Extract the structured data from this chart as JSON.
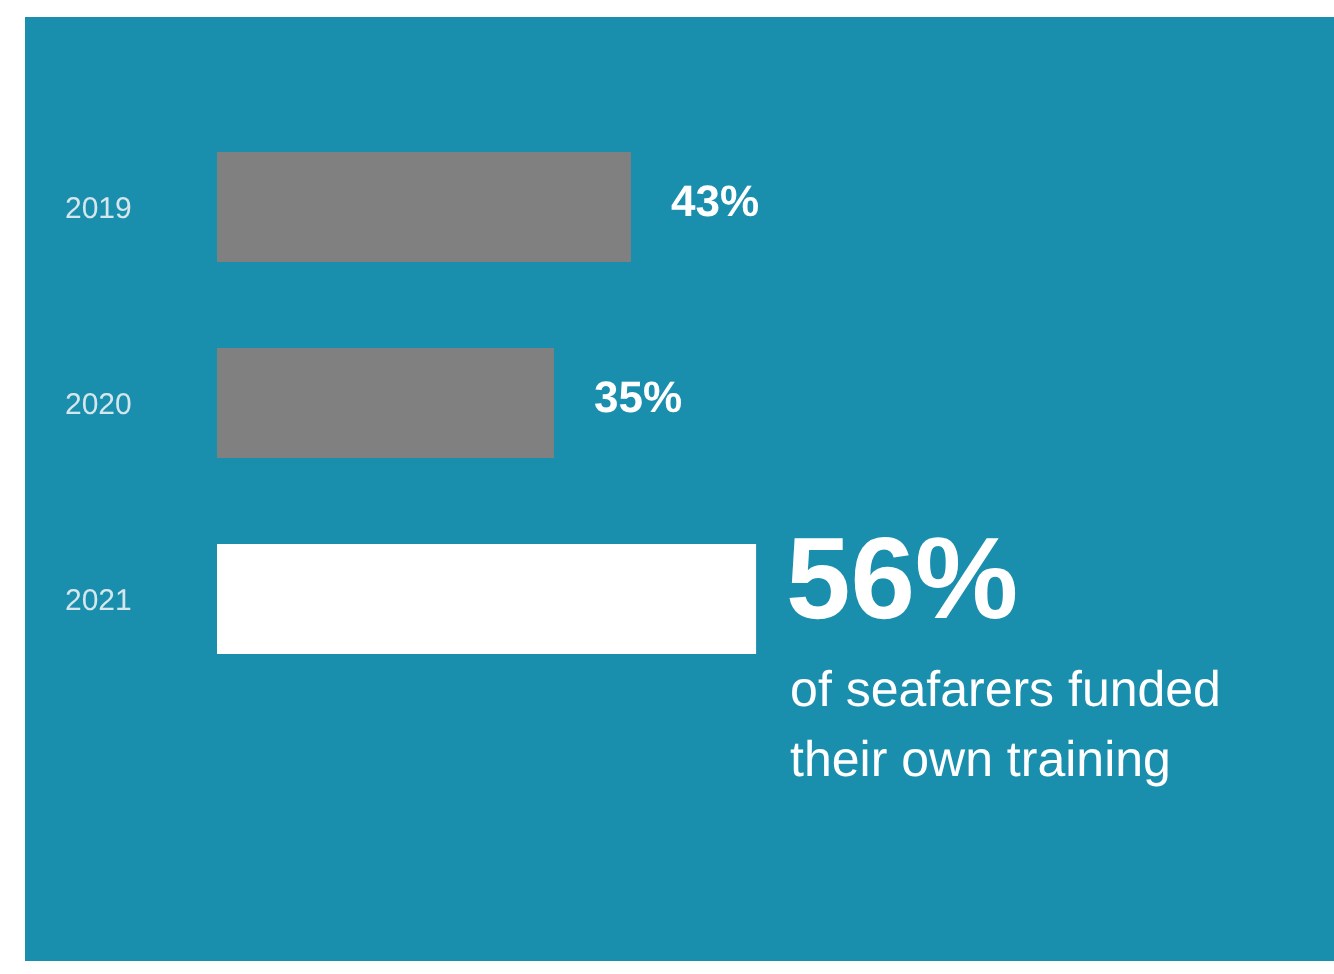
{
  "chart_data": {
    "type": "bar",
    "orientation": "horizontal",
    "categories": [
      "2019",
      "2020",
      "2021"
    ],
    "values": [
      43,
      35,
      56
    ],
    "colors": [
      "#808080",
      "#808080",
      "#ffffff"
    ],
    "value_labels": [
      "43%",
      "35%",
      "56%"
    ],
    "annotations": [
      "of seafarers funded\ntheir own training"
    ]
  }
}
